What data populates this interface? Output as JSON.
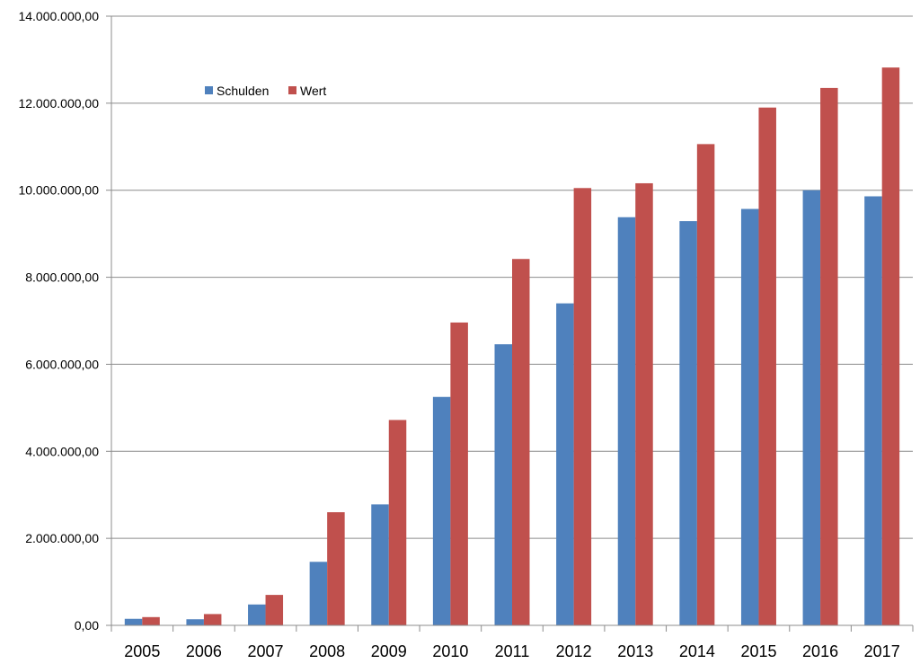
{
  "chart_data": {
    "type": "bar",
    "categories": [
      "2005",
      "2006",
      "2007",
      "2008",
      "2009",
      "2010",
      "2011",
      "2012",
      "2013",
      "2014",
      "2015",
      "2016",
      "2017"
    ],
    "series": [
      {
        "name": "Schulden",
        "color": "#4f81bd",
        "values": [
          150000,
          140000,
          480000,
          1460000,
          2780000,
          5250000,
          6460000,
          7400000,
          9380000,
          9290000,
          9570000,
          10000000,
          9860000
        ]
      },
      {
        "name": "Wert",
        "color": "#c0504d",
        "values": [
          190000,
          260000,
          700000,
          2600000,
          4720000,
          6960000,
          8420000,
          10050000,
          10160000,
          11060000,
          11900000,
          12350000,
          12820000
        ]
      }
    ],
    "ylim": [
      0,
      14000000
    ],
    "yticks": [
      0,
      2000000,
      4000000,
      6000000,
      8000000,
      10000000,
      12000000,
      14000000
    ],
    "ytick_labels": [
      "0,00",
      "2.000.000,00",
      "4.000.000,00",
      "6.000.000,00",
      "8.000.000,00",
      "10.000.000,00",
      "12.000.000,00",
      "14.000.000,00"
    ],
    "grid": true,
    "legend_position": "top-left"
  }
}
